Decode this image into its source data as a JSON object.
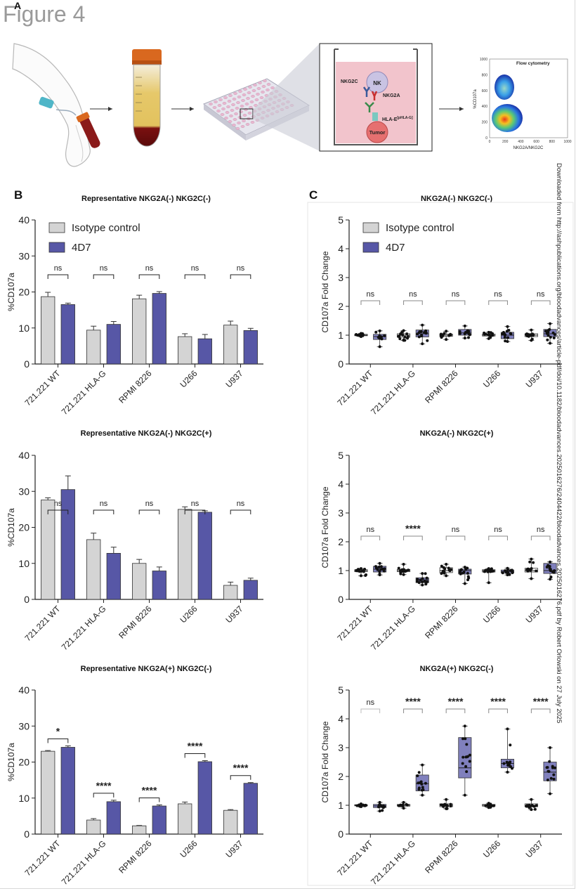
{
  "figure_title": "Figure 4",
  "panel_labels": {
    "a": "A",
    "b": "B",
    "c": "C"
  },
  "schematic": {
    "nk_label": "NK",
    "nkg2c_label": "NKG2C",
    "nkg2a_label": "NKG2A",
    "hla_label": "HLA-E",
    "hla_superscript": "[pHLA-G]",
    "tumor_label": "Tumor",
    "flow_title": "Flow cytometry",
    "flow_xlabel": "NKG2A/NKG2C",
    "flow_ylabel": "%CD107a",
    "flow_xticks": [
      "0",
      "200",
      "400",
      "600",
      "800",
      "1000"
    ],
    "flow_yticks": [
      "0",
      "200",
      "400",
      "600",
      "800",
      "1000"
    ]
  },
  "download_note": "Downloaded from http://ashpublications.org/bloodadvances/article-pdf/doi/10.1182/bloodadvances.2025016276/2404422/bloodadvances.2025016276.pdf by Robert Orlowski on 27 July 2025",
  "colors": {
    "isotype": "#d4d4d4",
    "treatment": "#5757a6",
    "box_fill": "#6a6ab2",
    "tick": "#222222"
  },
  "chart_data": [
    {
      "id": "B1",
      "type": "bar",
      "title": "Representative NKG2A(-) NKG2C(-)",
      "ylabel": "%CD107a",
      "ylim": [
        0,
        40
      ],
      "yticks": [
        0,
        10,
        20,
        30,
        40
      ],
      "categories": [
        "721.221 WT",
        "721.221 HLA-G",
        "RPMI 8226",
        "U266",
        "U937"
      ],
      "series": [
        {
          "name": "Isotype control",
          "values": [
            18.7,
            9.4,
            18.1,
            7.6,
            10.8
          ],
          "errors": [
            1.2,
            1.1,
            1.0,
            0.8,
            1.1
          ]
        },
        {
          "name": "4D7",
          "values": [
            16.5,
            11.0,
            19.6,
            7.0,
            9.3
          ],
          "errors": [
            0.4,
            0.8,
            0.5,
            1.2,
            0.6
          ]
        }
      ],
      "significance": [
        "ns",
        "ns",
        "ns",
        "ns",
        "ns"
      ],
      "legend": "top-left",
      "grid": false
    },
    {
      "id": "B2",
      "type": "bar",
      "title": "Representative NKG2A(-) NKG2C(+)",
      "ylabel": "%CD107a",
      "ylim": [
        0,
        40
      ],
      "yticks": [
        0,
        10,
        20,
        30,
        40
      ],
      "categories": [
        "721.221 WT",
        "721.221 HLA-G",
        "RPMI 8226",
        "U266",
        "U937"
      ],
      "series": [
        {
          "name": "Isotype control",
          "values": [
            27.6,
            16.6,
            10.0,
            25.0,
            3.9
          ],
          "errors": [
            0.6,
            1.8,
            1.1,
            0.7,
            0.9
          ]
        },
        {
          "name": "4D7",
          "values": [
            30.5,
            12.8,
            7.9,
            24.2,
            5.3
          ],
          "errors": [
            3.8,
            1.7,
            1.1,
            0.4,
            0.6
          ]
        }
      ],
      "significance": [
        "ns",
        "ns",
        "ns",
        "ns",
        "ns"
      ],
      "grid": false
    },
    {
      "id": "B3",
      "type": "bar",
      "title": "Representative NKG2A(+) NKG2C(-)",
      "ylabel": "%CD107a",
      "ylim": [
        0,
        40
      ],
      "yticks": [
        0,
        10,
        20,
        30,
        40
      ],
      "categories": [
        "721.221 WT",
        "721.221 HLA-G",
        "RPMI 8226",
        "U266",
        "U937"
      ],
      "series": [
        {
          "name": "Isotype control",
          "values": [
            23.0,
            3.9,
            2.3,
            8.4,
            6.6
          ],
          "errors": [
            0.2,
            0.4,
            0.1,
            0.5,
            0.2
          ]
        },
        {
          "name": "4D7",
          "values": [
            24.1,
            9.0,
            7.8,
            20.1,
            14.1
          ],
          "errors": [
            0.4,
            0.4,
            0.3,
            0.3,
            0.2
          ]
        }
      ],
      "significance": [
        "*",
        "****",
        "****",
        "****",
        "****"
      ],
      "grid": false
    },
    {
      "id": "C1",
      "type": "box",
      "title": "NKG2A(-) NKG2C(-)",
      "ylabel": "CD107a Fold Change",
      "ylim": [
        0,
        5
      ],
      "yticks": [
        0,
        1,
        2,
        3,
        4,
        5
      ],
      "categories": [
        "721.221 WT",
        "721.221 HLA-G",
        "RPMI 8226",
        "U266",
        "U937"
      ],
      "series": [
        {
          "name": "Isotype control",
          "boxes": [
            [
              0.95,
              0.98,
              1.0,
              1.03,
              1.06
            ],
            [
              0.82,
              0.93,
              1.0,
              1.05,
              1.16
            ],
            [
              0.85,
              0.96,
              1.0,
              1.04,
              1.14
            ],
            [
              0.88,
              0.97,
              1.0,
              1.04,
              1.1
            ],
            [
              0.82,
              0.95,
              1.0,
              1.05,
              1.18
            ]
          ]
        },
        {
          "name": "4D7",
          "boxes": [
            [
              0.6,
              0.85,
              0.95,
              1.03,
              1.15
            ],
            [
              0.7,
              0.94,
              1.05,
              1.18,
              1.35
            ],
            [
              0.9,
              1.0,
              1.08,
              1.2,
              1.32
            ],
            [
              0.78,
              0.88,
              1.0,
              1.1,
              1.3
            ],
            [
              0.72,
              0.95,
              1.05,
              1.2,
              1.4
            ]
          ]
        }
      ],
      "significance": [
        "ns",
        "ns",
        "ns",
        "ns",
        "ns"
      ],
      "legend": "top-left",
      "grid": false
    },
    {
      "id": "C2",
      "type": "box",
      "title": "NKG2A(-) NKG2C(+)",
      "ylabel": "CD107a Fold Change",
      "ylim": [
        0,
        5
      ],
      "yticks": [
        0,
        1,
        2,
        3,
        4,
        5
      ],
      "categories": [
        "721.221 WT",
        "721.221 HLA-G",
        "RPMI 8226",
        "U266",
        "U937"
      ],
      "series": [
        {
          "name": "Isotype control",
          "boxes": [
            [
              0.82,
              0.96,
              1.0,
              1.03,
              1.07
            ],
            [
              0.86,
              0.96,
              1.0,
              1.04,
              1.22
            ],
            [
              0.82,
              0.93,
              1.0,
              1.1,
              1.22
            ],
            [
              0.58,
              0.95,
              1.0,
              1.03,
              1.07
            ],
            [
              0.72,
              0.95,
              1.0,
              1.08,
              1.4
            ]
          ]
        },
        {
          "name": "4D7",
          "boxes": [
            [
              0.85,
              0.95,
              1.05,
              1.15,
              1.25
            ],
            [
              0.5,
              0.58,
              0.68,
              0.75,
              0.9
            ],
            [
              0.55,
              0.88,
              1.0,
              1.05,
              1.12
            ],
            [
              0.85,
              0.92,
              0.97,
              1.02,
              1.08
            ],
            [
              0.7,
              0.9,
              1.0,
              1.25,
              1.3
            ]
          ]
        }
      ],
      "significance": [
        "ns",
        "****",
        "ns",
        "ns",
        "ns"
      ],
      "grid": false
    },
    {
      "id": "C3",
      "type": "box",
      "title": "NKG2A(+) NKG2C(-)",
      "ylabel": "CD107a Fold Change",
      "ylim": [
        0,
        5
      ],
      "yticks": [
        0,
        1,
        2,
        3,
        4,
        5
      ],
      "categories": [
        "721.221 WT",
        "721.221 HLA-G",
        "RPMI 8226",
        "U266",
        "U937"
      ],
      "series": [
        {
          "name": "Isotype control",
          "boxes": [
            [
              0.95,
              0.98,
              1.0,
              1.02,
              1.05
            ],
            [
              0.9,
              0.97,
              1.0,
              1.03,
              1.1
            ],
            [
              0.88,
              0.95,
              1.0,
              1.05,
              1.2
            ],
            [
              0.92,
              0.97,
              1.0,
              1.03,
              1.07
            ],
            [
              0.85,
              0.95,
              1.0,
              1.05,
              1.2
            ]
          ]
        },
        {
          "name": "4D7",
          "boxes": [
            [
              0.8,
              0.92,
              0.98,
              1.03,
              1.1
            ],
            [
              1.35,
              1.5,
              1.75,
              2.05,
              2.4
            ],
            [
              1.35,
              1.95,
              2.3,
              3.35,
              3.75
            ],
            [
              2.15,
              2.3,
              2.45,
              2.6,
              3.65
            ],
            [
              1.4,
              1.85,
              2.15,
              2.5,
              3.0
            ]
          ]
        }
      ],
      "significance": [
        "ns",
        "****",
        "****",
        "****",
        "****"
      ],
      "grid": false
    }
  ]
}
